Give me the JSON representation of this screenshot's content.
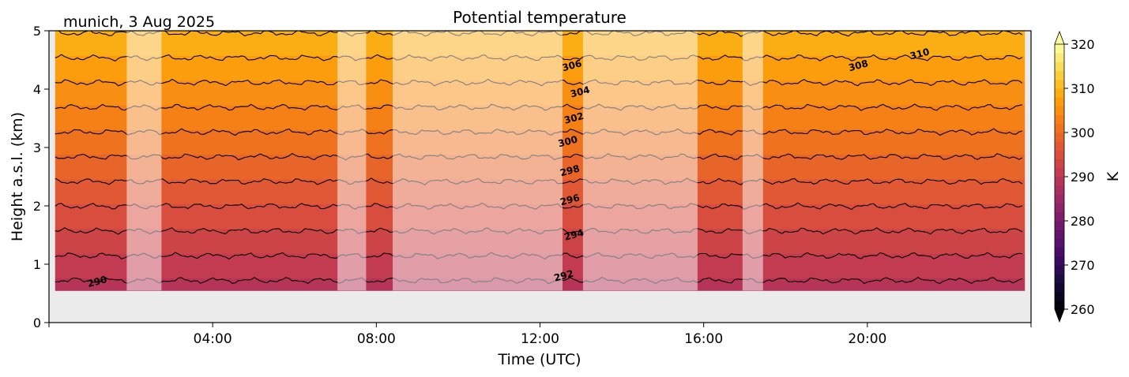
{
  "chart_data": {
    "type": "heatmap",
    "title": "Potential temperature",
    "subtitle": "munich, 3 Aug 2025",
    "xlabel": "Time (UTC)",
    "ylabel": "Height a.s.l. (km)",
    "xlim_hours": [
      0,
      24
    ],
    "ylim": [
      0,
      5
    ],
    "xticks": [
      {
        "hour": 4,
        "label": "04:00"
      },
      {
        "hour": 8,
        "label": "08:00"
      },
      {
        "hour": 12,
        "label": "12:00"
      },
      {
        "hour": 16,
        "label": "16:00"
      },
      {
        "hour": 20,
        "label": "20:00"
      }
    ],
    "yticks": [
      {
        "value": 0,
        "label": "0"
      },
      {
        "value": 1,
        "label": "1"
      },
      {
        "value": 2,
        "label": "2"
      },
      {
        "value": 3,
        "label": "3"
      },
      {
        "value": 4,
        "label": "4"
      },
      {
        "value": 5,
        "label": "5"
      }
    ],
    "data_bottom_km": 0.55,
    "data_end_hour": 23.85,
    "data_start_hour": 0.15,
    "masked_intervals_hours": [
      [
        1.9,
        2.75
      ],
      [
        7.05,
        7.75
      ],
      [
        8.4,
        12.55
      ],
      [
        13.05,
        15.85
      ],
      [
        16.95,
        17.45
      ]
    ],
    "contour_levels_K": [
      290,
      292,
      294,
      296,
      298,
      300,
      302,
      304,
      306,
      308,
      310
    ],
    "contour_labels": [
      {
        "text": "290",
        "hour": 1.2,
        "km": 0.65
      },
      {
        "text": "292",
        "hour": 12.6,
        "km": 0.75
      },
      {
        "text": "294",
        "hour": 12.85,
        "km": 1.45
      },
      {
        "text": "296",
        "hour": 12.75,
        "km": 2.05
      },
      {
        "text": "298",
        "hour": 12.75,
        "km": 2.55
      },
      {
        "text": "300",
        "hour": 12.7,
        "km": 3.05
      },
      {
        "text": "302",
        "hour": 12.85,
        "km": 3.45
      },
      {
        "text": "304",
        "hour": 13.0,
        "km": 3.9
      },
      {
        "text": "306",
        "hour": 12.8,
        "km": 4.35
      },
      {
        "text": "308",
        "hour": 19.8,
        "km": 4.35
      },
      {
        "text": "310",
        "hour": 21.3,
        "km": 4.55
      }
    ],
    "surface_theta_K": 289,
    "theta_at_5km_K": 310,
    "colorbar": {
      "label": "K",
      "min": 260,
      "max": 320,
      "ticks": [
        260,
        270,
        280,
        290,
        300,
        310,
        320
      ],
      "tick_labels": [
        "260",
        "270",
        "280",
        "290",
        "300",
        "310",
        "320"
      ],
      "extend": "both",
      "colormap": "inferno"
    },
    "colors": {
      "mask_overlay": "#ffffff",
      "missing_background": "#ebebeb",
      "contour_line": "#000000"
    }
  }
}
